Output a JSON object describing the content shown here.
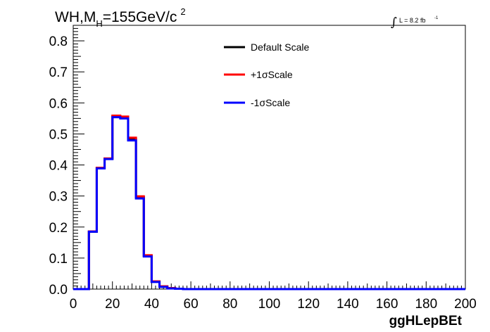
{
  "title": {
    "part1": "WH,M",
    "sub": "H",
    "part2": "=155GeV/c",
    "sup": "2"
  },
  "luminosity": {
    "symbol": "∫",
    "text": "L = 8.2 fb",
    "sup": "-1"
  },
  "chart_data": {
    "type": "line",
    "xlabel": "ggHLepBEt",
    "ylabel": "",
    "xlim": [
      0,
      200
    ],
    "ylim": [
      0,
      0.85
    ],
    "x_ticks": [
      "0",
      "20",
      "40",
      "60",
      "80",
      "100",
      "120",
      "140",
      "160",
      "180",
      "200"
    ],
    "y_ticks": [
      "0.0",
      "0.1",
      "0.2",
      "0.3",
      "0.4",
      "0.5",
      "0.6",
      "0.7",
      "0.8"
    ],
    "bin_edges": [
      0,
      4,
      8,
      12,
      16,
      20,
      24,
      28,
      32,
      36,
      40,
      44,
      48,
      52,
      56,
      60,
      200
    ],
    "legend_position": "top-center",
    "grid": false,
    "series": [
      {
        "name": "Default Scale",
        "color": "#000000",
        "values": [
          0.0,
          0.0,
          0.185,
          0.39,
          0.42,
          0.556,
          0.553,
          0.484,
          0.296,
          0.107,
          0.024,
          0.008,
          0.003,
          0.001,
          0.0,
          0.0
        ]
      },
      {
        "name": "+1σScale",
        "color": "#ff0000",
        "values": [
          0.0,
          0.0,
          0.186,
          0.391,
          0.421,
          0.559,
          0.556,
          0.488,
          0.299,
          0.109,
          0.025,
          0.009,
          0.003,
          0.001,
          0.0,
          0.0
        ]
      },
      {
        "name": "-1σScale",
        "color": "#0000ff",
        "values": [
          0.0,
          0.0,
          0.185,
          0.389,
          0.419,
          0.554,
          0.55,
          0.479,
          0.292,
          0.105,
          0.023,
          0.007,
          0.002,
          0.001,
          0.0,
          0.0
        ]
      }
    ]
  }
}
